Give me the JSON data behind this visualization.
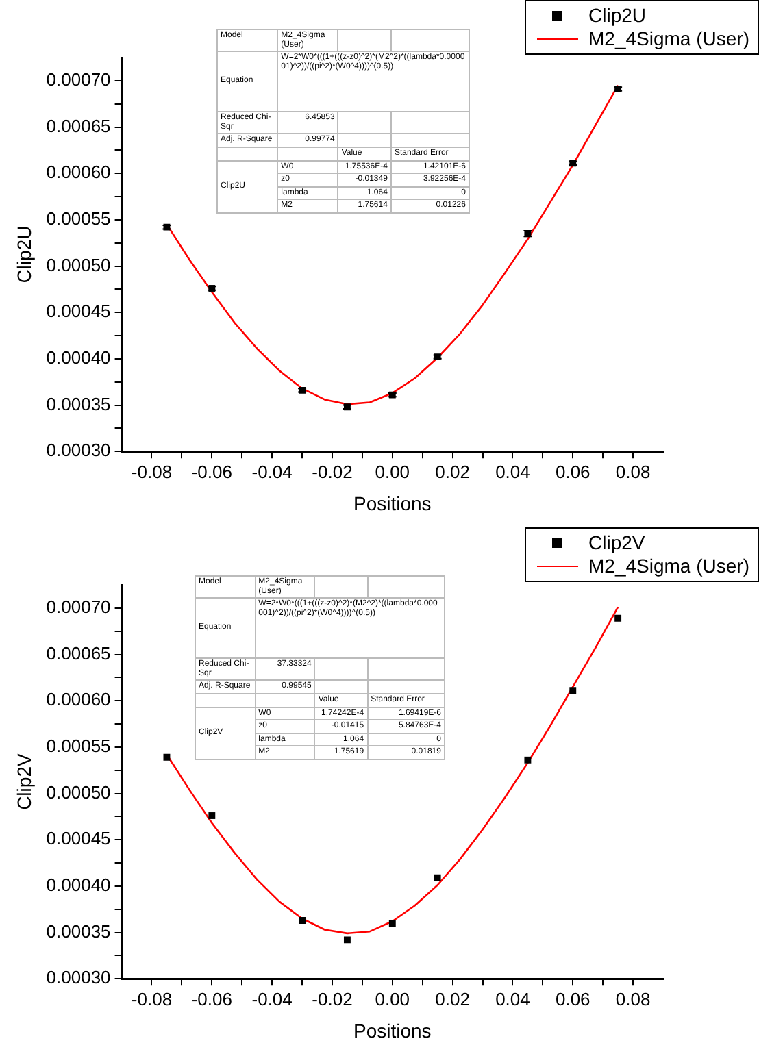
{
  "chart_data": [
    {
      "type": "scatter",
      "xlabel": "Positions",
      "ylabel": "Clip2U",
      "legend": "top right",
      "grid": false,
      "xlim": [
        -0.09,
        0.09
      ],
      "xticks": [
        -0.08,
        {
          "value": -0.07,
          "label": null
        },
        -0.06,
        {
          "value": -0.05,
          "label": null
        },
        -0.04,
        {
          "value": -0.03,
          "label": null
        },
        -0.02,
        {
          "value": -0.01,
          "label": null
        },
        {
          "value": 0,
          "label": "0.00"
        },
        {
          "value": 0.01,
          "label": null
        },
        0.02,
        {
          "value": 0.03,
          "label": null
        },
        0.04,
        {
          "value": 0.05,
          "label": null
        },
        0.06,
        {
          "value": 0.07,
          "label": null
        },
        0.08
      ],
      "ylim": [
        0.0003,
        0.000725
      ],
      "yticks": [
        {
          "value": 0.0003,
          "label": "0.00030"
        },
        {
          "value": 0.000325,
          "label": null
        },
        {
          "value": 0.00035,
          "label": "0.00035"
        },
        {
          "value": 0.000375,
          "label": null
        },
        {
          "value": 0.0004,
          "label": "0.00040"
        },
        {
          "value": 0.000425,
          "label": null
        },
        {
          "value": 0.00045,
          "label": "0.00045"
        },
        {
          "value": 0.000475,
          "label": null
        },
        {
          "value": 0.0005,
          "label": "0.00050"
        },
        {
          "value": 0.000525,
          "label": null
        },
        {
          "value": 0.00055,
          "label": "0.00055"
        },
        {
          "value": 0.000575,
          "label": null
        },
        {
          "value": 0.0006,
          "label": "0.00060"
        },
        {
          "value": 0.000625,
          "label": null
        },
        {
          "value": 0.00065,
          "label": "0.00065"
        },
        {
          "value": 0.000675,
          "label": null
        },
        {
          "value": 0.0007,
          "label": "0.00070"
        }
      ],
      "annotations": [
        "Model",
        "M2_4Sigma (User)",
        "Equation",
        "W=2*W0*(((1+(((z-z0)^2)*(M2^2)*((lambda*0.000001)^2))/((pi^2)*(W0^4))))^(0.5))",
        "Reduced Chi-Sqr",
        "6.45853",
        "Adj. R-Square",
        "0.99774",
        "Value",
        "Standard Error",
        "Clip2U",
        "W0",
        "1.75536E-4",
        "1.42101E-6",
        "z0",
        "-0.01349",
        "3.92256E-4",
        "lambda",
        "1.064",
        "0",
        "M2",
        "1.75614",
        "0.01226"
      ],
      "series": [
        {
          "name": "Clip2U",
          "marker": "square",
          "color": "#000000",
          "x": [
            -0.075,
            -0.06,
            -0.03,
            -0.015,
            0,
            0.015,
            0.045,
            0.06,
            0.075
          ],
          "values": [
            0.000542,
            0.000476,
            0.000366,
            0.000348,
            0.000361,
            0.000402,
            0.000535,
            0.000611,
            0.000691
          ],
          "errors": [
            2e-06,
            2e-06,
            2e-06,
            2e-06,
            2e-06,
            2e-06,
            3e-06,
            2e-06,
            2e-06
          ]
        },
        {
          "name": "M2_4Sigma (User)",
          "type": "line",
          "marker": "none",
          "line_style": "solid",
          "color": "#ff0000",
          "x": [
            -0.075,
            -0.0675,
            -0.06,
            -0.0525,
            -0.045,
            -0.0375,
            -0.03,
            -0.0225,
            -0.015,
            -0.0075,
            0,
            0.0075,
            0.015,
            0.0225,
            0.03,
            0.0375,
            0.045,
            0.0525,
            0.06,
            0.0675,
            0.075
          ],
          "values": [
            0.000545,
            0.000507,
            0.000472,
            0.000439,
            0.000411,
            0.000387,
            0.000368,
            0.000356,
            0.000351,
            0.000353,
            0.000363,
            0.000379,
            0.000401,
            0.000427,
            0.000458,
            0.000493,
            0.000529,
            0.000569,
            0.000609,
            0.000652,
            0.000695
          ]
        }
      ]
    },
    {
      "type": "scatter",
      "xlabel": "Positions",
      "ylabel": "Clip2V",
      "legend": "top right",
      "grid": false,
      "xlim": [
        -0.09,
        0.09
      ],
      "xticks": [
        -0.08,
        {
          "value": -0.07,
          "label": null
        },
        -0.06,
        {
          "value": -0.05,
          "label": null
        },
        -0.04,
        {
          "value": -0.03,
          "label": null
        },
        -0.02,
        {
          "value": -0.01,
          "label": null
        },
        {
          "value": 0,
          "label": "0.00"
        },
        {
          "value": 0.01,
          "label": null
        },
        0.02,
        {
          "value": 0.03,
          "label": null
        },
        0.04,
        {
          "value": 0.05,
          "label": null
        },
        0.06,
        {
          "value": 0.07,
          "label": null
        },
        0.08
      ],
      "ylim": [
        0.0003,
        0.000725
      ],
      "yticks": [
        {
          "value": 0.0003,
          "label": "0.00030"
        },
        {
          "value": 0.000325,
          "label": null
        },
        {
          "value": 0.00035,
          "label": "0.00035"
        },
        {
          "value": 0.000375,
          "label": null
        },
        {
          "value": 0.0004,
          "label": "0.00040"
        },
        {
          "value": 0.000425,
          "label": null
        },
        {
          "value": 0.00045,
          "label": "0.00045"
        },
        {
          "value": 0.000475,
          "label": null
        },
        {
          "value": 0.0005,
          "label": "0.00050"
        },
        {
          "value": 0.000525,
          "label": null
        },
        {
          "value": 0.00055,
          "label": "0.00055"
        },
        {
          "value": 0.000575,
          "label": null
        },
        {
          "value": 0.0006,
          "label": "0.00060"
        },
        {
          "value": 0.000625,
          "label": null
        },
        {
          "value": 0.00065,
          "label": "0.00065"
        },
        {
          "value": 0.000675,
          "label": null
        },
        {
          "value": 0.0007,
          "label": "0.00070"
        }
      ],
      "annotations": [
        "Model",
        "M2_4Sigma (User)",
        "Equation",
        "W=2*W0*(((1+(((z-z0)^2)*(M2^2)*((lambda*0.000001)^2))/((pi^2)*(W0^4))))^(0.5))",
        "Reduced Chi-Sqr",
        "37.33324",
        "Adj. R-Square",
        "0.99545",
        "Value",
        "Standard Error",
        "Clip2V",
        "W0",
        "1.74242E-4",
        "1.69419E-6",
        "z0",
        "-0.01415",
        "5.84763E-4",
        "lambda",
        "1.064",
        "0",
        "M2",
        "1.75619",
        "0.01819"
      ],
      "series": [
        {
          "name": "Clip2V",
          "marker": "square",
          "color": "#000000",
          "x": [
            -0.075,
            -0.06,
            -0.03,
            -0.015,
            0,
            0.015,
            0.045,
            0.06,
            0.075
          ],
          "values": [
            0.000539,
            0.000476,
            0.000363,
            0.000342,
            0.00036,
            0.000409,
            0.000536,
            0.000611,
            0.000689
          ]
        },
        {
          "name": "M2_4Sigma (User)",
          "type": "line",
          "marker": "none",
          "line_style": "solid",
          "color": "#ff0000",
          "x": [
            -0.075,
            -0.0675,
            -0.06,
            -0.0525,
            -0.045,
            -0.0375,
            -0.03,
            -0.0225,
            -0.015,
            -0.0075,
            0,
            0.0075,
            0.015,
            0.0225,
            0.03,
            0.0375,
            0.045,
            0.0525,
            0.06,
            0.0675,
            0.075
          ],
          "values": [
            0.000542,
            0.000504,
            0.000468,
            0.000436,
            0.000407,
            0.000383,
            0.000365,
            0.000353,
            0.000349,
            0.000351,
            0.000362,
            0.000379,
            0.000401,
            0.000429,
            0.000461,
            0.000496,
            0.000533,
            0.000573,
            0.000615,
            0.000657,
            0.000701
          ]
        }
      ]
    }
  ]
}
